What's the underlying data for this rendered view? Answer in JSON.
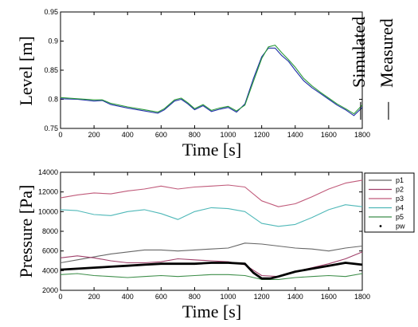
{
  "chart_data": [
    {
      "type": "line",
      "xlabel": "Time [s]",
      "ylabel": "Level [m]",
      "xlim": [
        0,
        1800
      ],
      "ylim": [
        0.75,
        0.95
      ],
      "xticks": [
        "0",
        "200",
        "400",
        "600",
        "800",
        "1000",
        "1200",
        "1400",
        "1600",
        "1800"
      ],
      "yticks": [
        "0.75",
        "0.8",
        "0.85",
        "0.9",
        "0.95"
      ],
      "grid": false,
      "legend_position": "right",
      "legend_entries": [
        "Simulated",
        "Measured"
      ],
      "legend_marks": [
        "—",
        "—"
      ],
      "series": [
        {
          "name": "Simulated",
          "color": "#1f2fa8",
          "x": [
            0,
            100,
            200,
            250,
            300,
            400,
            500,
            580,
            620,
            680,
            720,
            760,
            800,
            850,
            900,
            950,
            1000,
            1050,
            1100,
            1150,
            1200,
            1240,
            1280,
            1320,
            1360,
            1400,
            1450,
            1500,
            1550,
            1600,
            1650,
            1700,
            1750,
            1800
          ],
          "y": [
            0.801,
            0.8,
            0.797,
            0.798,
            0.791,
            0.785,
            0.78,
            0.776,
            0.782,
            0.797,
            0.8,
            0.792,
            0.782,
            0.789,
            0.779,
            0.783,
            0.786,
            0.778,
            0.792,
            0.835,
            0.873,
            0.888,
            0.888,
            0.875,
            0.865,
            0.85,
            0.832,
            0.82,
            0.81,
            0.8,
            0.79,
            0.782,
            0.772,
            0.786
          ]
        },
        {
          "name": "Measured",
          "color": "#2a9a3a",
          "x": [
            0,
            100,
            200,
            250,
            300,
            400,
            500,
            580,
            620,
            680,
            720,
            760,
            800,
            850,
            900,
            950,
            1000,
            1050,
            1100,
            1150,
            1200,
            1240,
            1280,
            1320,
            1360,
            1400,
            1450,
            1500,
            1550,
            1600,
            1650,
            1700,
            1750,
            1800
          ],
          "y": [
            0.803,
            0.801,
            0.799,
            0.799,
            0.793,
            0.787,
            0.782,
            0.778,
            0.784,
            0.799,
            0.802,
            0.794,
            0.784,
            0.791,
            0.781,
            0.785,
            0.788,
            0.78,
            0.79,
            0.83,
            0.87,
            0.89,
            0.893,
            0.88,
            0.868,
            0.855,
            0.836,
            0.823,
            0.812,
            0.802,
            0.792,
            0.784,
            0.775,
            0.79
          ]
        }
      ]
    },
    {
      "type": "line",
      "xlabel": "Time [s]",
      "ylabel": "Pressure [Pa]",
      "xlim": [
        0,
        1800
      ],
      "ylim": [
        2000,
        14000
      ],
      "xticks": [
        "0",
        "200",
        "400",
        "600",
        "800",
        "1000",
        "1200",
        "1400",
        "1600",
        "1800"
      ],
      "yticks": [
        "2000",
        "4000",
        "6000",
        "8000",
        "10000",
        "12000",
        "14000"
      ],
      "grid": false,
      "legend_position": "right",
      "series": [
        {
          "name": "p1",
          "color": "#666666",
          "x": [
            0,
            100,
            200,
            300,
            400,
            500,
            600,
            700,
            800,
            900,
            1000,
            1100,
            1200,
            1300,
            1400,
            1500,
            1600,
            1700,
            1800
          ],
          "y": [
            4800,
            5100,
            5400,
            5700,
            5900,
            6100,
            6100,
            6000,
            6100,
            6200,
            6300,
            6800,
            6700,
            6500,
            6300,
            6200,
            6000,
            6300,
            6500
          ]
        },
        {
          "name": "p2",
          "color": "#a0406a",
          "x": [
            0,
            100,
            200,
            300,
            400,
            500,
            600,
            700,
            800,
            900,
            1000,
            1100,
            1200,
            1300,
            1400,
            1500,
            1600,
            1700,
            1800
          ],
          "y": [
            5300,
            5500,
            5300,
            5000,
            4800,
            4800,
            4900,
            5200,
            5100,
            5000,
            4900,
            4600,
            3500,
            3400,
            3900,
            4300,
            4700,
            5200,
            5900
          ]
        },
        {
          "name": "p3",
          "color": "#c05a7a",
          "x": [
            0,
            100,
            200,
            300,
            400,
            500,
            600,
            700,
            800,
            900,
            1000,
            1100,
            1200,
            1300,
            1400,
            1500,
            1600,
            1700,
            1800
          ],
          "y": [
            11400,
            11700,
            11900,
            11800,
            12100,
            12300,
            12600,
            12300,
            12500,
            12600,
            12700,
            12500,
            11100,
            10500,
            10800,
            11500,
            12300,
            12900,
            13200
          ]
        },
        {
          "name": "p4",
          "color": "#4fb8b8",
          "x": [
            0,
            100,
            200,
            300,
            400,
            500,
            600,
            700,
            800,
            900,
            1000,
            1100,
            1200,
            1300,
            1400,
            1500,
            1600,
            1700,
            1800
          ],
          "y": [
            10200,
            10100,
            9700,
            9600,
            10000,
            10200,
            9800,
            9200,
            10000,
            10400,
            10300,
            10000,
            8800,
            8500,
            8700,
            9400,
            10200,
            10700,
            10500
          ]
        },
        {
          "name": "p5",
          "color": "#3e8e4a",
          "x": [
            0,
            100,
            200,
            300,
            400,
            500,
            600,
            700,
            800,
            900,
            1000,
            1100,
            1200,
            1300,
            1400,
            1500,
            1600,
            1700,
            1800
          ],
          "y": [
            3600,
            3700,
            3500,
            3400,
            3300,
            3400,
            3500,
            3400,
            3500,
            3600,
            3600,
            3500,
            3100,
            3100,
            3300,
            3400,
            3500,
            3400,
            3700
          ]
        },
        {
          "name": "pw",
          "color": "#000000",
          "x": [
            0,
            100,
            200,
            300,
            400,
            500,
            600,
            700,
            800,
            900,
            1000,
            1100,
            1150,
            1200,
            1250,
            1300,
            1400,
            1500,
            1600,
            1700,
            1800
          ],
          "y": [
            4100,
            4200,
            4300,
            4400,
            4500,
            4600,
            4700,
            4700,
            4700,
            4800,
            4800,
            4700,
            3800,
            3200,
            3200,
            3400,
            3900,
            4200,
            4500,
            4800,
            4600
          ]
        }
      ]
    }
  ]
}
